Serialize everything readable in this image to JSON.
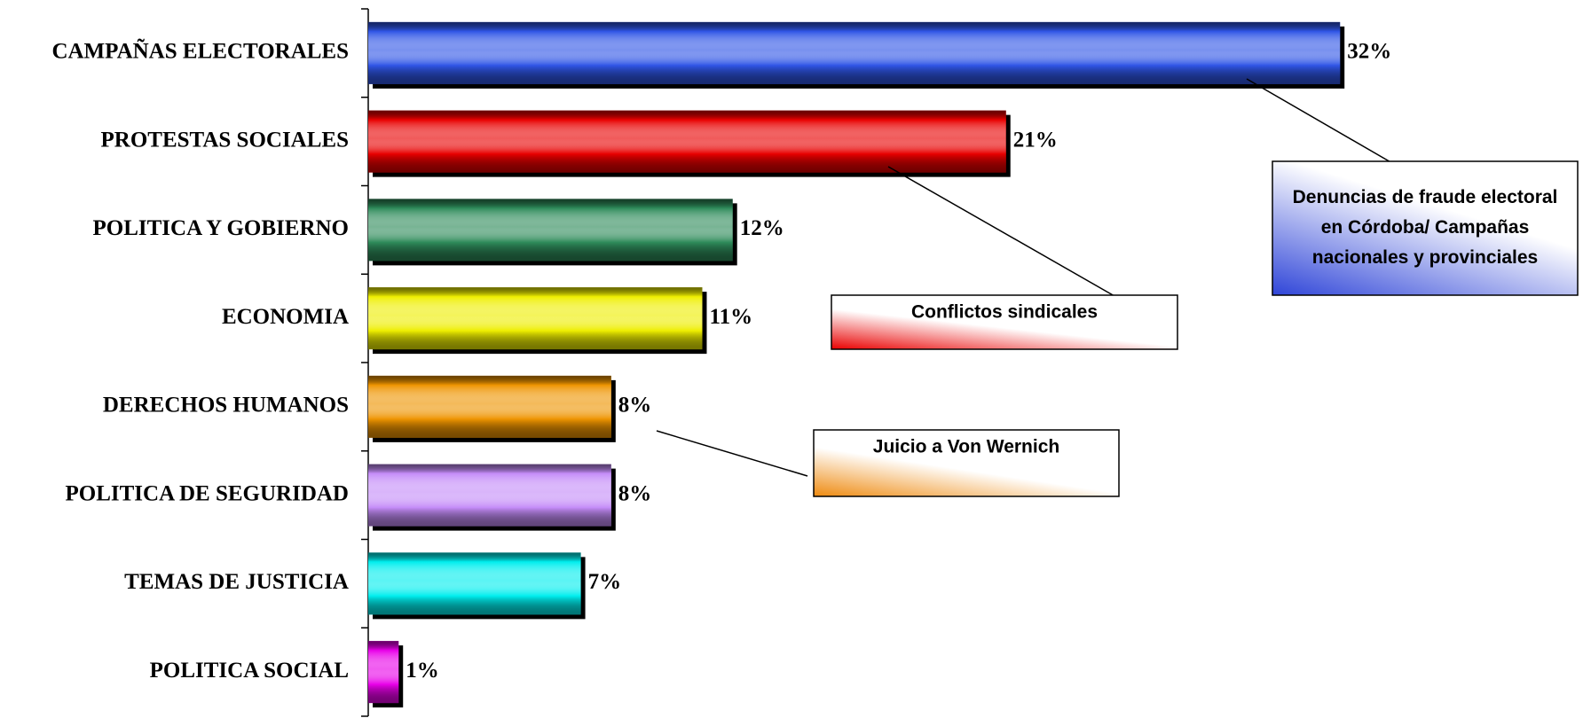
{
  "chart_data": {
    "type": "bar",
    "orientation": "horizontal",
    "categories": [
      "CAMPAÑAS ELECTORALES",
      "PROTESTAS SOCIALES",
      "POLITICA Y GOBIERNO",
      "ECONOMIA",
      "DERECHOS HUMANOS",
      "POLITICA DE SEGURIDAD",
      "TEMAS DE JUSTICIA",
      "POLITICA SOCIAL"
    ],
    "values": [
      32,
      21,
      12,
      11,
      8,
      8,
      7,
      1
    ],
    "value_labels": [
      "32%",
      "21%",
      "12%",
      "11%",
      "8%",
      "8%",
      "7%",
      "1%"
    ],
    "colors": [
      "#2f55e6",
      "#e80000",
      "#2e8b5a",
      "#eeee00",
      "#ee9400",
      "#c48cf8",
      "#00eeee",
      "#e800e8"
    ],
    "xlim": [
      0,
      40
    ],
    "annotations": [
      {
        "lines": [
          "Denuncias de fraude electoral",
          "en Córdoba/ Campañas",
          "nacionales y provinciales"
        ],
        "color": "#2f45d8",
        "category": 0
      },
      {
        "lines": [
          "Conflictos sindicales"
        ],
        "color": "#e80000",
        "category": 1
      },
      {
        "lines": [
          "Juicio a Von Wernich"
        ],
        "color": "#ee8a10",
        "category": 4
      }
    ]
  }
}
